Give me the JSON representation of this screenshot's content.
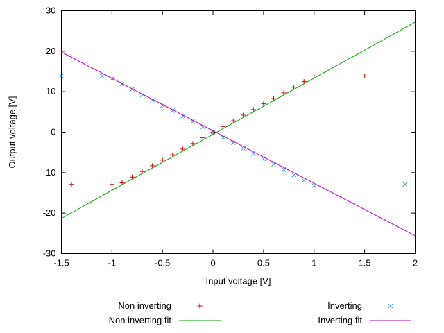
{
  "chart_data": {
    "type": "scatter",
    "title": "",
    "xlabel": "Input voltage [V]",
    "ylabel": "Output voltage [V]",
    "xlim": [
      -1.5,
      2
    ],
    "ylim": [
      -30,
      30
    ],
    "xticks": [
      -1.5,
      -1,
      -0.5,
      0,
      0.5,
      1,
      1.5,
      2
    ],
    "yticks": [
      -30,
      -20,
      -10,
      0,
      10,
      20,
      30
    ],
    "grid": false,
    "legend_position": "below",
    "axis_color": "#000000",
    "series": [
      {
        "name": "Non inverting",
        "type": "points",
        "marker": "plus",
        "color": "#d40000",
        "points": [
          [
            -1.4,
            -12.9
          ],
          [
            -1.0,
            -12.9
          ],
          [
            -0.9,
            -12.5
          ],
          [
            -0.8,
            -11.1
          ],
          [
            -0.7,
            -9.7
          ],
          [
            -0.6,
            -8.3
          ],
          [
            -0.5,
            -6.9
          ],
          [
            -0.4,
            -5.6
          ],
          [
            -0.3,
            -4.2
          ],
          [
            -0.2,
            -2.8
          ],
          [
            -0.1,
            -1.4
          ],
          [
            0.0,
            0.0
          ],
          [
            0.1,
            1.4
          ],
          [
            0.2,
            2.8
          ],
          [
            0.3,
            4.2
          ],
          [
            0.4,
            5.6
          ],
          [
            0.5,
            7.0
          ],
          [
            0.6,
            8.3
          ],
          [
            0.7,
            9.7
          ],
          [
            0.8,
            11.1
          ],
          [
            0.9,
            12.5
          ],
          [
            1.0,
            13.9
          ],
          [
            1.5,
            13.9
          ]
        ]
      },
      {
        "name": "Inverting",
        "type": "points",
        "marker": "cross",
        "color": "#3d9bdc",
        "points": [
          [
            -1.5,
            13.9
          ],
          [
            -1.1,
            13.9
          ],
          [
            -1.0,
            13.2
          ],
          [
            -0.9,
            11.9
          ],
          [
            -0.8,
            10.6
          ],
          [
            -0.7,
            9.2
          ],
          [
            -0.6,
            7.9
          ],
          [
            -0.5,
            6.6
          ],
          [
            -0.4,
            5.3
          ],
          [
            -0.3,
            4.0
          ],
          [
            -0.2,
            2.6
          ],
          [
            -0.1,
            1.3
          ],
          [
            0.0,
            0.0
          ],
          [
            0.1,
            -1.3
          ],
          [
            0.2,
            -2.6
          ],
          [
            0.3,
            -4.0
          ],
          [
            0.4,
            -5.3
          ],
          [
            0.5,
            -6.6
          ],
          [
            0.6,
            -7.9
          ],
          [
            0.7,
            -9.2
          ],
          [
            0.8,
            -10.6
          ],
          [
            0.9,
            -11.9
          ],
          [
            1.0,
            -13.2
          ],
          [
            1.9,
            -12.9
          ]
        ]
      },
      {
        "name": "Non inverting fit",
        "type": "line",
        "color": "#00a000",
        "points": [
          [
            -1.5,
            -21.3
          ],
          [
            2.0,
            27.2
          ]
        ]
      },
      {
        "name": "Inverting fit",
        "type": "line",
        "color": "#b000b0",
        "points": [
          [
            -1.5,
            19.8
          ],
          [
            2.0,
            -25.6
          ]
        ]
      }
    ]
  }
}
